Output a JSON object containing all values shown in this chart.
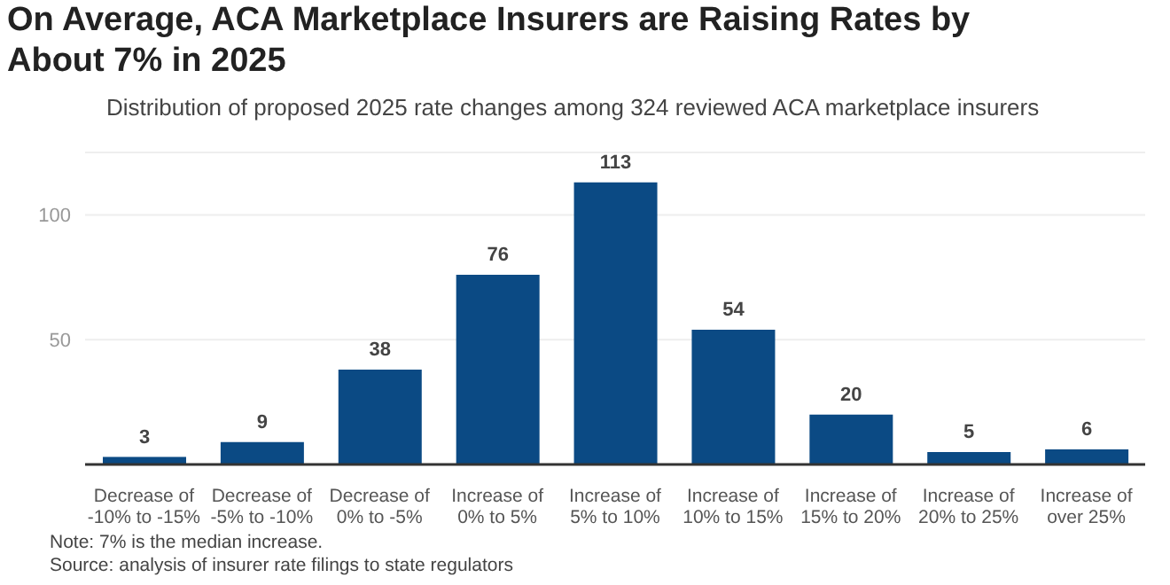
{
  "chart_data": {
    "type": "bar",
    "title": "On Average, ACA Marketplace Insurers are Raising Rates by About 7% in 2025",
    "subtitle": "Distribution of proposed 2025 rate changes among 324 reviewed ACA marketplace insurers",
    "categories": [
      "Decrease of -10% to -15%",
      "Decrease of -5% to -10%",
      "Decrease of 0% to -5%",
      "Increase of 0% to 5%",
      "Increase of 5% to 10%",
      "Increase of 10% to 15%",
      "Increase of 15% to 20%",
      "Increase of 20% to 25%",
      "Increase of over 25%"
    ],
    "values": [
      3,
      9,
      38,
      76,
      113,
      54,
      20,
      5,
      6
    ],
    "color": "#0b4a84",
    "data_labels": true,
    "ylim": [
      0,
      125
    ],
    "yticks": [
      {
        "value": 0,
        "label": null
      },
      50,
      100
    ],
    "grid": "y",
    "annotations": [
      "Note: 7% is the median increase.",
      "Source: analysis of insurer rate filings to state regulators"
    ]
  }
}
